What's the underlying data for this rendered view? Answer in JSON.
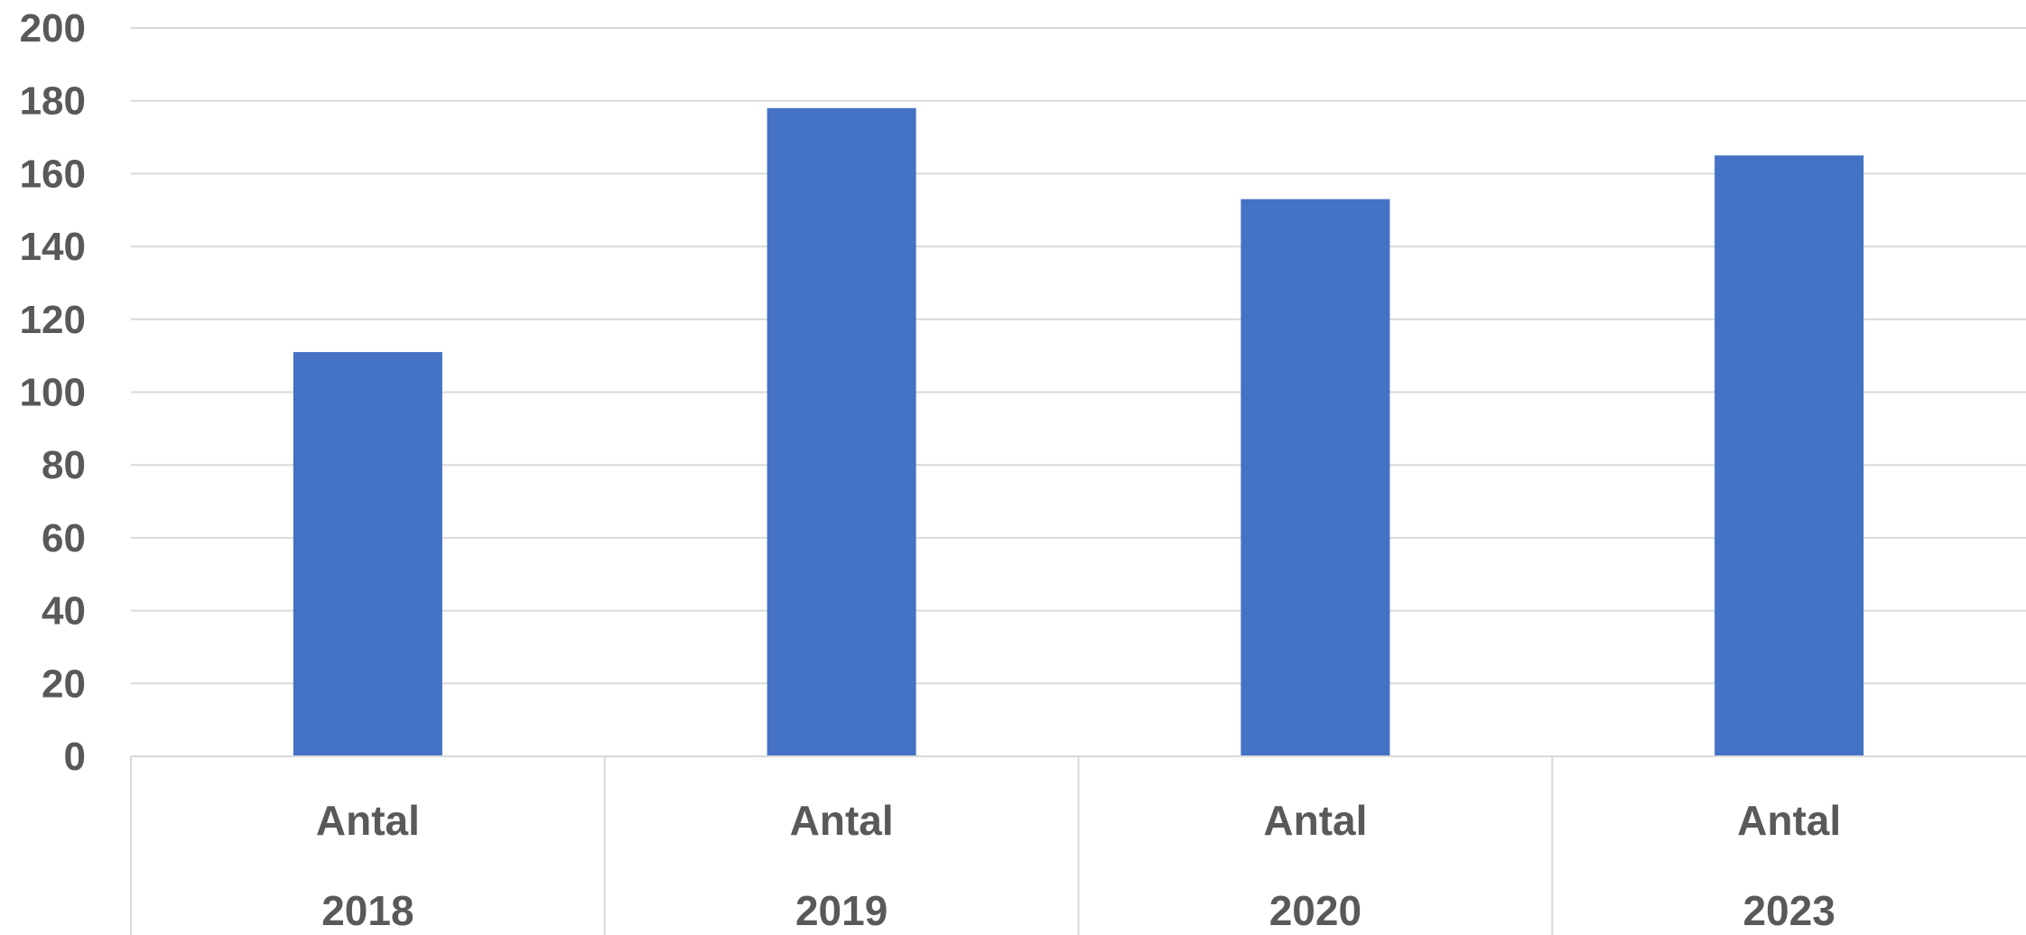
{
  "chart_data": {
    "type": "bar",
    "title": "",
    "xlabel": "",
    "ylabel": "",
    "ylim": [
      0,
      200
    ],
    "y_ticks": [
      0,
      20,
      40,
      60,
      80,
      100,
      120,
      140,
      160,
      180,
      200
    ],
    "grid": true,
    "legend": "none",
    "bar_color": "#4472c4",
    "categories": [
      {
        "group": "Antal",
        "year": "2018"
      },
      {
        "group": "Antal",
        "year": "2019"
      },
      {
        "group": "Antal",
        "year": "2020"
      },
      {
        "group": "Antal",
        "year": "2023"
      }
    ],
    "values": [
      111,
      178,
      153,
      165
    ]
  }
}
